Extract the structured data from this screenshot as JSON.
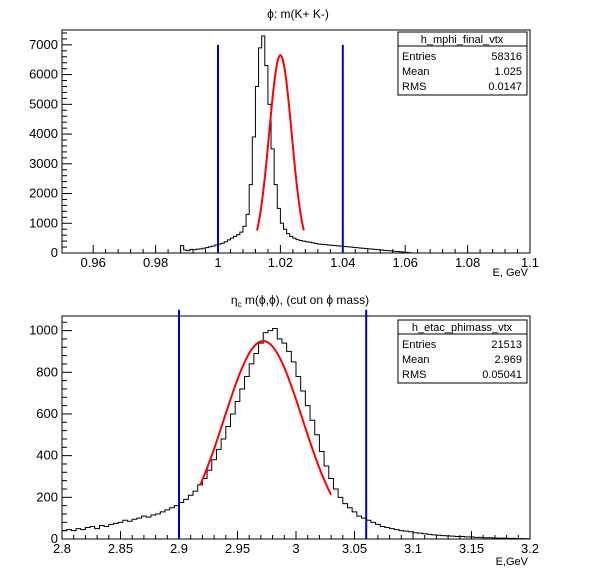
{
  "chart_data": [
    {
      "type": "histogram",
      "title": "ϕ: m(K+ K-)",
      "xlabel": "E, GeV",
      "ylabel": "",
      "xlim": [
        0.95,
        1.1
      ],
      "ylim": [
        0,
        7500
      ],
      "x_ticks": [
        0.96,
        0.98,
        1,
        1.02,
        1.04,
        1.06,
        1.08,
        1.1
      ],
      "x_tick_labels": [
        "0.96",
        "0.98",
        "1",
        "1.02",
        "1.04",
        "1.06",
        "1.08",
        "1.1"
      ],
      "y_ticks": [
        0,
        1000,
        2000,
        3000,
        4000,
        5000,
        6000,
        7000
      ],
      "y_tick_labels": [
        "0",
        "1000",
        "2000",
        "3000",
        "4000",
        "5000",
        "6000",
        "7000"
      ],
      "grid": false,
      "stats_box": {
        "name": "h_mphi_final_vtx",
        "rows": [
          {
            "label": "Entries",
            "value": "58316"
          },
          {
            "label": "Mean",
            "value": "1.025"
          },
          {
            "label": "RMS",
            "value": "0.0147"
          }
        ]
      },
      "cut_lines_x": [
        1.0,
        1.04
      ],
      "cut_line_top": 7000,
      "fit": {
        "type": "gaussian",
        "amplitude": 6650,
        "mean": 1.02,
        "sigma": 0.0036,
        "x_range": [
          1.0125,
          1.0275
        ]
      },
      "series": [
        {
          "x": [
            0.9875,
            0.9885,
            0.9895,
            0.9905,
            0.9915,
            0.9925,
            0.9935,
            0.9945,
            0.9955,
            0.9965,
            0.9975,
            0.9985,
            0.9995,
            1.0005,
            1.0015,
            1.0025,
            1.0035,
            1.0045,
            1.0055,
            1.0065,
            1.0075,
            1.0085,
            1.0095,
            1.0105,
            1.0115,
            1.0125,
            1.0135,
            1.0145,
            1.0155,
            1.0165,
            1.0175,
            1.0185,
            1.0195,
            1.0205,
            1.0215,
            1.0225,
            1.0235,
            1.0245,
            1.0255,
            1.0265,
            1.0275,
            1.0285,
            1.0295,
            1.0305,
            1.0315,
            1.0325,
            1.0335,
            1.0345,
            1.0355,
            1.0365,
            1.0375,
            1.0385,
            1.0395,
            1.0405,
            1.0415,
            1.0425,
            1.0435,
            1.0445,
            1.0455,
            1.0465,
            1.0475,
            1.0485,
            1.0495,
            1.0505,
            1.0515,
            1.0525,
            1.0535,
            1.0545,
            1.0555,
            1.0565,
            1.0575,
            1.0585,
            1.0595,
            1.0605,
            1.0615,
            1.0625,
            1.0635,
            1.0645,
            1.0655,
            1.0665,
            1.0675,
            1.0685,
            1.0695,
            1.0705,
            1.0715,
            1.0725,
            1.0735,
            1.0745,
            1.0755,
            1.0765,
            1.0775,
            1.0785,
            1.0795,
            1.0805,
            1.0815,
            1.0825,
            1.0835,
            1.0845,
            1.0855,
            1.0865,
            1.0875,
            1.0885,
            1.0895
          ],
          "values": [
            0,
            250,
            100,
            80,
            120,
            110,
            130,
            140,
            160,
            180,
            210,
            230,
            270,
            300,
            330,
            380,
            440,
            500,
            560,
            620,
            700,
            900,
            1300,
            2300,
            3900,
            5600,
            6900,
            7300,
            6300,
            5000,
            3500,
            2300,
            1500,
            1000,
            800,
            650,
            560,
            500,
            450,
            420,
            400,
            380,
            360,
            340,
            320,
            300,
            290,
            280,
            270,
            260,
            250,
            240,
            230,
            220,
            210,
            200,
            190,
            180,
            170,
            160,
            150,
            140,
            130,
            120,
            110,
            100,
            90,
            80,
            70,
            60,
            50,
            40,
            30,
            20,
            10,
            0,
            0,
            0,
            0,
            0,
            0,
            0,
            0,
            0,
            0,
            0,
            0,
            0,
            0,
            0,
            0,
            0,
            0,
            0,
            0,
            0,
            0,
            0,
            0,
            0,
            0,
            0,
            0
          ]
        }
      ]
    },
    {
      "type": "histogram",
      "title": "ηc m(ϕ,ϕ), (cut on ϕ mass)",
      "title_parts": {
        "eta": "η",
        "sub": "c",
        "rest": " m(ϕ,ϕ), (cut on ϕ mass)"
      },
      "xlabel": "E,GeV",
      "ylabel": "",
      "xlim": [
        2.8,
        3.2
      ],
      "ylim": [
        0,
        1070
      ],
      "x_ticks": [
        2.8,
        2.85,
        2.9,
        2.95,
        3.0,
        3.05,
        3.1,
        3.15,
        3.2
      ],
      "x_tick_labels": [
        "2.8",
        "2.85",
        "2.9",
        "2.95",
        "3",
        "3.05",
        "3.1",
        "3.15",
        "3.2"
      ],
      "y_ticks": [
        0,
        200,
        400,
        600,
        800,
        1000
      ],
      "y_tick_labels": [
        "0",
        "200",
        "400",
        "600",
        "800",
        "1000"
      ],
      "grid": false,
      "stats_box": {
        "name": "h_etac_phimass_vtx",
        "rows": [
          {
            "label": "Entries",
            "value": "21513"
          },
          {
            "label": "Mean",
            "value": "2.969"
          },
          {
            "label": "RMS",
            "value": "0.05041"
          }
        ]
      },
      "cut_lines_x": [
        2.9,
        3.06
      ],
      "cut_line_top": 1100,
      "fit": {
        "type": "gaussian",
        "amplitude": 950,
        "mean": 2.972,
        "sigma": 0.0335,
        "x_range": [
          2.918,
          3.03
        ]
      },
      "series": [
        {
          "x": [
            2.802,
            2.806,
            2.81,
            2.814,
            2.818,
            2.822,
            2.826,
            2.83,
            2.834,
            2.838,
            2.842,
            2.846,
            2.85,
            2.854,
            2.858,
            2.862,
            2.866,
            2.87,
            2.874,
            2.878,
            2.882,
            2.886,
            2.89,
            2.894,
            2.898,
            2.902,
            2.906,
            2.91,
            2.914,
            2.918,
            2.922,
            2.926,
            2.93,
            2.934,
            2.938,
            2.942,
            2.946,
            2.95,
            2.954,
            2.958,
            2.962,
            2.966,
            2.97,
            2.974,
            2.978,
            2.982,
            2.986,
            2.99,
            2.994,
            2.998,
            3.002,
            3.006,
            3.01,
            3.014,
            3.018,
            3.022,
            3.026,
            3.03,
            3.034,
            3.038,
            3.042,
            3.046,
            3.05,
            3.054,
            3.058,
            3.062,
            3.066,
            3.07,
            3.074,
            3.078,
            3.082,
            3.086,
            3.09,
            3.094,
            3.098,
            3.102,
            3.106,
            3.11,
            3.114,
            3.118,
            3.122,
            3.126,
            3.13,
            3.134,
            3.138,
            3.142,
            3.146,
            3.15,
            3.154,
            3.158,
            3.162,
            3.166,
            3.17,
            3.174,
            3.178,
            3.182,
            3.186,
            3.19,
            3.194,
            3.198
          ],
          "values": [
            40,
            45,
            40,
            50,
            45,
            55,
            60,
            50,
            65,
            60,
            70,
            75,
            80,
            90,
            85,
            95,
            100,
            110,
            105,
            115,
            120,
            130,
            140,
            150,
            160,
            175,
            190,
            210,
            230,
            260,
            290,
            330,
            380,
            430,
            480,
            540,
            600,
            660,
            720,
            780,
            840,
            890,
            940,
            990,
            1000,
            1010,
            960,
            940,
            900,
            850,
            780,
            710,
            640,
            570,
            500,
            420,
            350,
            290,
            240,
            200,
            170,
            150,
            130,
            110,
            100,
            90,
            80,
            70,
            60,
            55,
            50,
            45,
            40,
            38,
            35,
            30,
            28,
            25,
            22,
            20,
            18,
            16,
            15,
            14,
            12,
            12,
            10,
            10,
            8,
            8,
            6,
            6,
            5,
            4,
            4,
            3,
            3,
            2,
            2,
            1
          ]
        }
      ]
    }
  ]
}
